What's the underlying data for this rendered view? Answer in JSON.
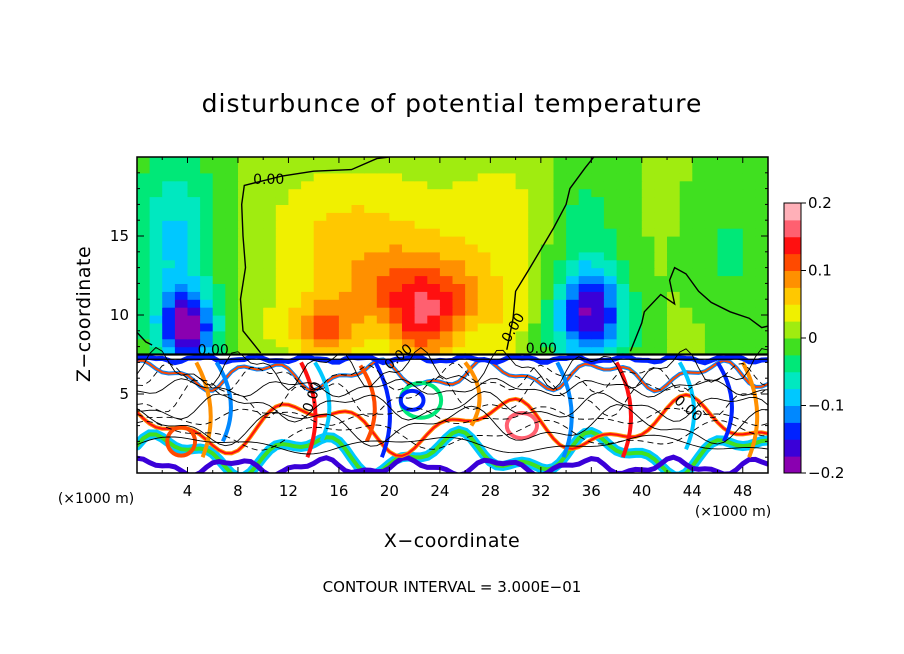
{
  "chart_data": {
    "type": "heatmap",
    "title": "disturbunce of potential temperature",
    "xlabel": "X−coordinate",
    "ylabel": "Z−coordinate",
    "x_unit": "(×1000 m)",
    "z_unit": "(×1000 m)",
    "xlim": [
      0,
      50
    ],
    "ylim": [
      0,
      20
    ],
    "x_ticks": [
      4,
      8,
      12,
      16,
      20,
      24,
      28,
      32,
      36,
      40,
      44,
      48
    ],
    "y_ticks": [
      5,
      10,
      15
    ],
    "colorbar": {
      "range": [
        -0.2,
        0.2
      ],
      "ticks": [
        0.2,
        0.1,
        0,
        -0.1,
        -0.2
      ],
      "tick_labels": [
        "0.2",
        "0.1",
        "0",
        "−0.1",
        "−0.2"
      ],
      "colors": [
        "#8a00b0",
        "#3a00d8",
        "#0022ff",
        "#0088ff",
        "#00c8ff",
        "#00e8c0",
        "#00e878",
        "#40e020",
        "#a0ec10",
        "#f0f000",
        "#ffc800",
        "#ff9000",
        "#ff4a00",
        "#ff1010",
        "#ff6070",
        "#ffb0b8"
      ]
    },
    "contour_labels": [
      "0.00",
      "0.00",
      "0.00",
      "0.00",
      "0.00",
      "0.00",
      "0.00"
    ],
    "contour_interval_text": "CONTOUR INTERVAL =  3.000E−01",
    "grid": false,
    "legend": "right colorbar"
  }
}
